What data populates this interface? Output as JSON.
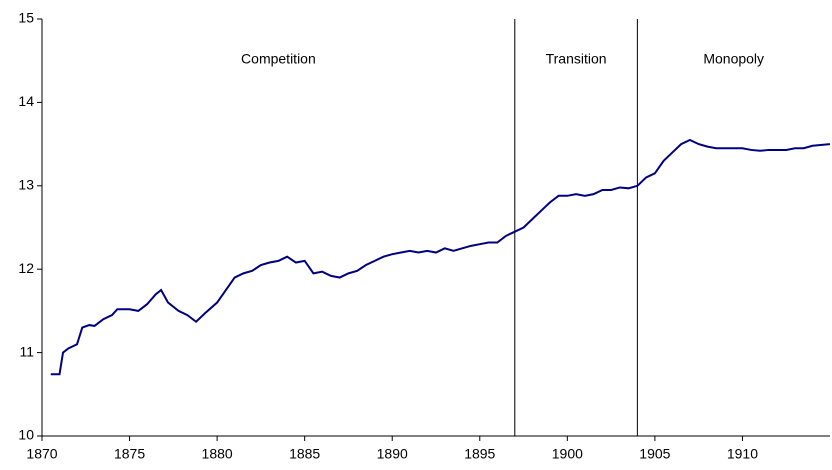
{
  "chart_data": {
    "type": "line",
    "x": [
      1870.5,
      1871,
      1871.2,
      1871.5,
      1872,
      1872.3,
      1872.7,
      1873,
      1873.5,
      1874,
      1874.3,
      1875,
      1875.5,
      1876,
      1876.5,
      1876.8,
      1877.2,
      1877.8,
      1878.3,
      1878.8,
      1879.3,
      1880,
      1880.5,
      1881,
      1881.5,
      1882,
      1882.5,
      1883,
      1883.5,
      1884,
      1884.5,
      1885,
      1885.5,
      1886,
      1886.5,
      1887,
      1887.5,
      1888,
      1888.5,
      1889,
      1889.5,
      1890,
      1890.5,
      1891,
      1891.5,
      1892,
      1892.5,
      1893,
      1893.5,
      1894,
      1894.5,
      1895,
      1895.5,
      1896,
      1896.5,
      1897,
      1897.5,
      1898,
      1898.5,
      1899,
      1899.5,
      1900,
      1900.5,
      1901,
      1901.5,
      1902,
      1902.5,
      1903,
      1903.5,
      1904,
      1904.5,
      1905,
      1905.5,
      1906,
      1906.5,
      1907,
      1907.5,
      1908,
      1908.5,
      1909,
      1909.5,
      1910,
      1910.5,
      1911,
      1911.5,
      1912,
      1912.5,
      1913,
      1913.5,
      1914,
      1915
    ],
    "series": [
      {
        "color": "#000080",
        "values": [
          10.74,
          10.74,
          11.0,
          11.05,
          11.1,
          11.3,
          11.33,
          11.32,
          11.4,
          11.45,
          11.52,
          11.52,
          11.5,
          11.58,
          11.7,
          11.75,
          11.6,
          11.5,
          11.45,
          11.37,
          11.47,
          11.6,
          11.75,
          11.9,
          11.95,
          11.98,
          12.05,
          12.08,
          12.1,
          12.15,
          12.08,
          12.1,
          11.95,
          11.97,
          11.92,
          11.9,
          11.95,
          11.98,
          12.05,
          12.1,
          12.15,
          12.18,
          12.2,
          12.22,
          12.2,
          12.22,
          12.2,
          12.25,
          12.22,
          12.25,
          12.28,
          12.3,
          12.32,
          12.32,
          12.4,
          12.45,
          12.5,
          12.6,
          12.7,
          12.8,
          12.88,
          12.88,
          12.9,
          12.88,
          12.9,
          12.95,
          12.95,
          12.98,
          12.97,
          13.0,
          13.1,
          13.15,
          13.3,
          13.4,
          13.5,
          13.55,
          13.5,
          13.47,
          13.45,
          13.45,
          13.45,
          13.45,
          13.43,
          13.42,
          13.43,
          13.43,
          13.43,
          13.45,
          13.45,
          13.48,
          13.5
        ]
      }
    ],
    "boundaries": [
      1897,
      1904
    ],
    "regions": [
      "Competition",
      "Transition",
      "Monopoly"
    ],
    "xlim": [
      1870,
      1915
    ],
    "xticks": [
      1870,
      1875,
      1880,
      1885,
      1890,
      1895,
      1900,
      1905,
      1910
    ],
    "ylim": [
      10,
      15
    ],
    "yticks": [
      10,
      11,
      12,
      13,
      14,
      15
    ],
    "grid": false
  }
}
